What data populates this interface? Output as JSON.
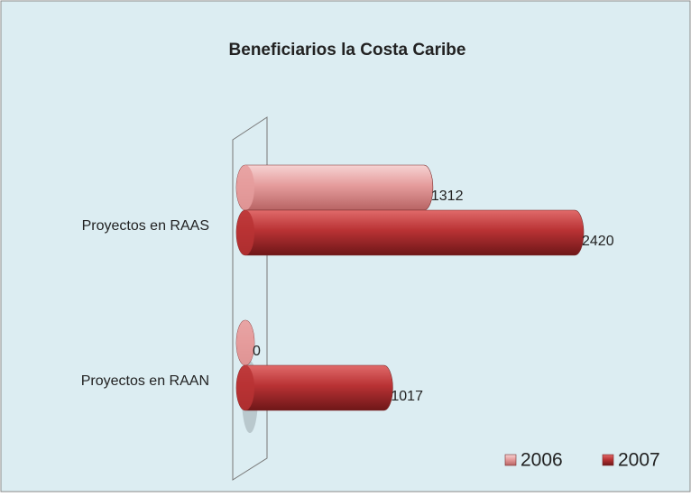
{
  "chart_data": {
    "type": "bar",
    "orientation": "horizontal",
    "title": "Beneficiarios  la Costa Caribe",
    "categories": [
      "Proyectos en RAAS",
      "Proyectos en RAAN"
    ],
    "series": [
      {
        "name": "2006",
        "color": "#e59c9c",
        "values": [
          1312,
          0
        ]
      },
      {
        "name": "2007",
        "color": "#b93234",
        "values": [
          2420,
          1017
        ]
      }
    ],
    "legend": "bottom-right"
  }
}
